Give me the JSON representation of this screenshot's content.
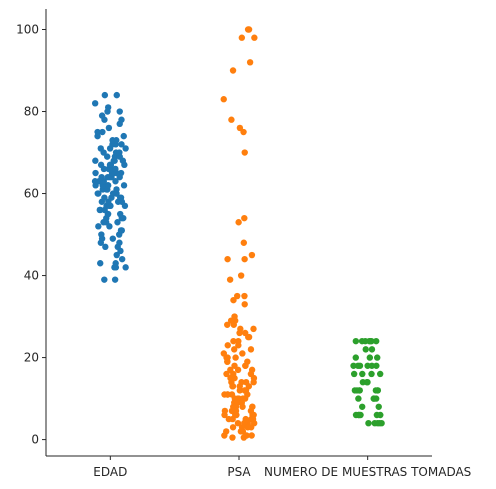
{
  "chart_data": {
    "type": "scatter",
    "style": "strip",
    "title": "",
    "xlabel": "",
    "ylabel": "",
    "ylim": [
      -4,
      105
    ],
    "yticks": [
      0,
      20,
      40,
      60,
      80,
      100
    ],
    "categories": [
      "EDAD",
      "PSA",
      "NUMERO DE MUESTRAS TOMADAS"
    ],
    "grid": false,
    "legend": "none",
    "series": [
      {
        "category": "EDAD",
        "color": "#1f77b4",
        "values": [
          39,
          39,
          42,
          42,
          42,
          43,
          43,
          44,
          45,
          46,
          47,
          47,
          48,
          48,
          49,
          49,
          50,
          50,
          51,
          51,
          52,
          52,
          53,
          53,
          53,
          54,
          54,
          54,
          55,
          55,
          55,
          56,
          56,
          56,
          57,
          57,
          57,
          57,
          58,
          58,
          58,
          58,
          59,
          59,
          59,
          59,
          60,
          60,
          60,
          60,
          60,
          61,
          61,
          61,
          61,
          61,
          62,
          62,
          62,
          62,
          62,
          63,
          63,
          63,
          63,
          63,
          64,
          64,
          64,
          64,
          64,
          65,
          65,
          65,
          65,
          65,
          66,
          66,
          66,
          66,
          67,
          67,
          67,
          67,
          68,
          68,
          68,
          68,
          69,
          69,
          69,
          70,
          70,
          70,
          71,
          71,
          71,
          72,
          72,
          72,
          73,
          73,
          74,
          74,
          75,
          75,
          76,
          77,
          78,
          78,
          79,
          80,
          80,
          81,
          82,
          84,
          84
        ]
      },
      {
        "category": "PSA",
        "color": "#ff7f0e",
        "values": [
          100,
          100,
          98,
          98,
          92,
          90,
          83,
          78,
          76,
          75,
          70,
          54,
          53,
          48,
          45,
          44,
          44,
          40,
          39,
          35,
          35,
          34,
          33,
          30,
          29,
          29,
          28,
          28,
          27,
          27,
          26,
          26,
          25,
          25,
          24,
          24,
          23,
          23,
          22,
          22,
          21,
          21,
          20,
          20,
          20,
          19,
          19,
          19,
          18,
          18,
          18,
          17,
          17,
          17,
          16,
          16,
          16,
          15,
          15,
          15,
          15,
          14,
          14,
          14,
          14,
          13,
          13,
          13,
          13,
          12,
          12,
          12,
          12,
          11,
          11,
          11,
          11,
          11,
          10,
          10,
          10,
          10,
          10,
          9,
          9,
          9,
          9,
          9,
          8,
          8,
          8,
          8,
          8,
          7,
          7,
          7,
          7,
          7,
          6,
          6,
          6,
          6,
          6,
          5,
          5,
          5,
          5,
          5,
          4,
          4,
          4,
          4,
          3,
          3,
          3,
          3,
          2,
          2,
          2,
          1,
          1,
          1,
          0.5,
          0.5
        ]
      },
      {
        "category": "NUMERO DE MUESTRAS TOMADAS",
        "color": "#2ca02c",
        "values": [
          4,
          4,
          4,
          4,
          4,
          6,
          6,
          6,
          6,
          6,
          6,
          8,
          8,
          10,
          10,
          10,
          10,
          12,
          12,
          12,
          12,
          12,
          12,
          12,
          14,
          14,
          14,
          16,
          16,
          16,
          16,
          18,
          18,
          18,
          18,
          18,
          18,
          20,
          20,
          20,
          22,
          22,
          24,
          24,
          24,
          24,
          24,
          24,
          24
        ]
      }
    ]
  }
}
